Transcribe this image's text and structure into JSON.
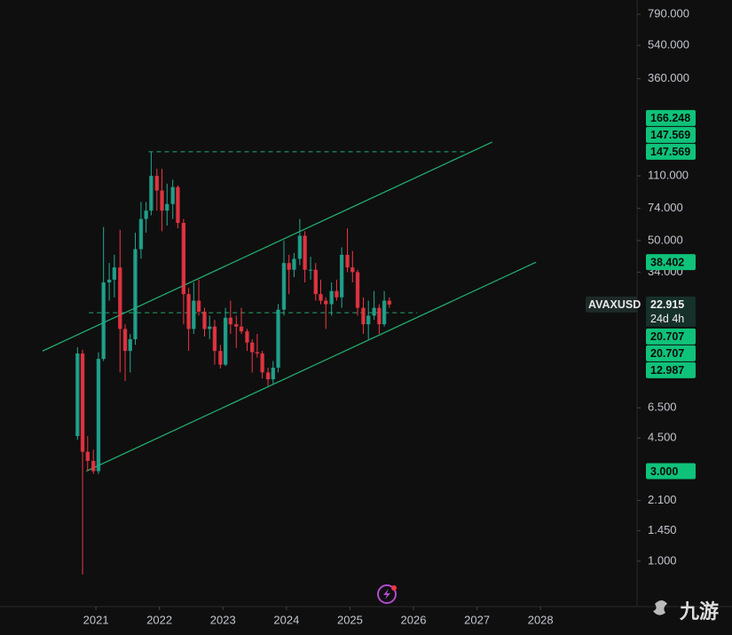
{
  "chart_data": {
    "type": "candlestick",
    "log_scale": true,
    "up_color": "#22ab94",
    "down_color": "#f23645",
    "x": [
      2020.71,
      2020.79,
      2020.87,
      2020.96,
      2021.04,
      2021.12,
      2021.21,
      2021.29,
      2021.38,
      2021.46,
      2021.54,
      2021.62,
      2021.71,
      2021.79,
      2021.87,
      2021.96,
      2022.04,
      2022.12,
      2022.21,
      2022.29,
      2022.38,
      2022.46,
      2022.54,
      2022.62,
      2022.71,
      2022.79,
      2022.87,
      2022.96,
      2023.04,
      2023.12,
      2023.21,
      2023.29,
      2023.38,
      2023.46,
      2023.54,
      2023.62,
      2023.71,
      2023.79,
      2023.87,
      2023.96,
      2024.04,
      2024.12,
      2024.21,
      2024.29,
      2024.38,
      2024.46,
      2024.54,
      2024.62,
      2024.71,
      2024.79,
      2024.87,
      2024.96,
      2025.04,
      2025.12,
      2025.21,
      2025.29,
      2025.38,
      2025.46,
      2025.54,
      2025.62
    ],
    "open": [
      4.6,
      12.6,
      3.8,
      3.4,
      3.0,
      11.8,
      30,
      31,
      36,
      17,
      13,
      15,
      45,
      65,
      72,
      110,
      92,
      72,
      78,
      96,
      62,
      26,
      17,
      24,
      21,
      17,
      17.5,
      13,
      11,
      19.5,
      18,
      17.5,
      16.5,
      14.4,
      12.8,
      12.6,
      10,
      9.2,
      10.6,
      21.5,
      38,
      35,
      40,
      53,
      35,
      35,
      26,
      24,
      23,
      27,
      25,
      42,
      36,
      34,
      22,
      18,
      20,
      22,
      18,
      24
    ],
    "high": [
      13.6,
      13.2,
      4.6,
      3.9,
      12.8,
      59,
      38,
      42,
      57,
      18,
      16,
      55,
      80,
      80,
      147,
      120,
      120,
      100,
      105,
      98,
      65,
      28,
      30,
      31,
      22,
      20,
      19,
      14,
      22,
      24,
      20,
      22,
      17,
      15,
      16,
      13,
      10.6,
      11.5,
      23,
      50,
      42,
      43,
      65,
      56,
      41,
      38,
      31,
      25,
      30,
      31,
      46,
      58,
      44,
      35,
      25,
      24,
      27,
      23,
      27,
      25
    ],
    "low": [
      4.4,
      0.85,
      3.0,
      2.9,
      2.9,
      11.5,
      24,
      25,
      10,
      9,
      10,
      14,
      40,
      55,
      68,
      72,
      56,
      60,
      65,
      58,
      18,
      13,
      16,
      20,
      15.5,
      15,
      11,
      10.5,
      10.8,
      16,
      13.5,
      16,
      13,
      10,
      12,
      9.3,
      8.5,
      8.7,
      10,
      20,
      26,
      32,
      37,
      30,
      31,
      24,
      23,
      17,
      20,
      24,
      22,
      34,
      30,
      20,
      16,
      15,
      19,
      16,
      17.5,
      22
    ],
    "close": [
      12.6,
      3.8,
      3.4,
      3.0,
      11.8,
      30,
      31,
      36,
      17,
      13,
      15,
      45,
      65,
      72,
      110,
      92,
      72,
      78,
      96,
      62,
      26,
      17,
      24,
      21,
      17,
      17.5,
      13,
      11,
      19.5,
      18,
      17.5,
      16.5,
      14.4,
      12.8,
      12.6,
      10,
      9.2,
      10.6,
      21.5,
      38,
      35,
      40,
      53,
      35,
      35,
      26,
      24,
      23,
      27,
      25,
      42,
      36,
      34,
      22,
      18,
      20,
      22,
      18,
      24,
      22.9
    ],
    "xlim": [
      2019.49,
      2029.52
    ],
    "xticks": [
      2021,
      2022,
      2023,
      2024,
      2025,
      2026,
      2027,
      2028
    ],
    "ylim": [
      0.575,
      940
    ],
    "yticks": [
      {
        "value": 790,
        "label": "790.000"
      },
      {
        "value": 540,
        "label": "540.000"
      },
      {
        "value": 360,
        "label": "360.000"
      },
      {
        "value": 110,
        "label": "110.000"
      },
      {
        "value": 74,
        "label": "74.000"
      },
      {
        "value": 50,
        "label": "50.000"
      },
      {
        "value": 34,
        "label": "34.000"
      },
      {
        "value": 6.5,
        "label": "6.500"
      },
      {
        "value": 4.5,
        "label": "4.500"
      },
      {
        "value": 2.1,
        "label": "2.100"
      },
      {
        "value": 1.45,
        "label": "1.450"
      },
      {
        "value": 1.0,
        "label": "1.000"
      }
    ],
    "trend_lines": [
      {
        "color": "#22ab6e",
        "x": [
          2020.16,
          2027.24
        ],
        "y": [
          12.987,
          166.248
        ]
      },
      {
        "color": "#22ab6e",
        "x": [
          2020.85,
          2027.93
        ],
        "y": [
          3.0,
          38.402
        ]
      }
    ],
    "dashed_lines": [
      {
        "color": "#22ab6e",
        "x": [
          2021.83,
          2026.83
        ],
        "y": 147.569
      },
      {
        "color": "#22ab6e",
        "x": [
          2020.89,
          2026.06
        ],
        "y": 20.707
      }
    ],
    "price_labels_above": [
      {
        "value": 166.248,
        "label": "166.248"
      },
      {
        "value": 147.569,
        "label": "147.569"
      },
      {
        "value": 147.569,
        "label": "147.569"
      },
      {
        "value": 38.402,
        "label": "38.402"
      }
    ],
    "last_price": {
      "value": 22.915,
      "label": "22.915"
    },
    "symbol": "AVAXUSD",
    "countdown": "24d 4h",
    "price_labels_below": [
      {
        "value": 20.707,
        "label": "20.707"
      },
      {
        "value": 20.707,
        "label": "20.707"
      },
      {
        "value": 12.987,
        "label": "12.987"
      },
      {
        "value": 3.0,
        "label": "3.000"
      }
    ],
    "label_color": "#0fc27a",
    "watermark": "九游"
  }
}
